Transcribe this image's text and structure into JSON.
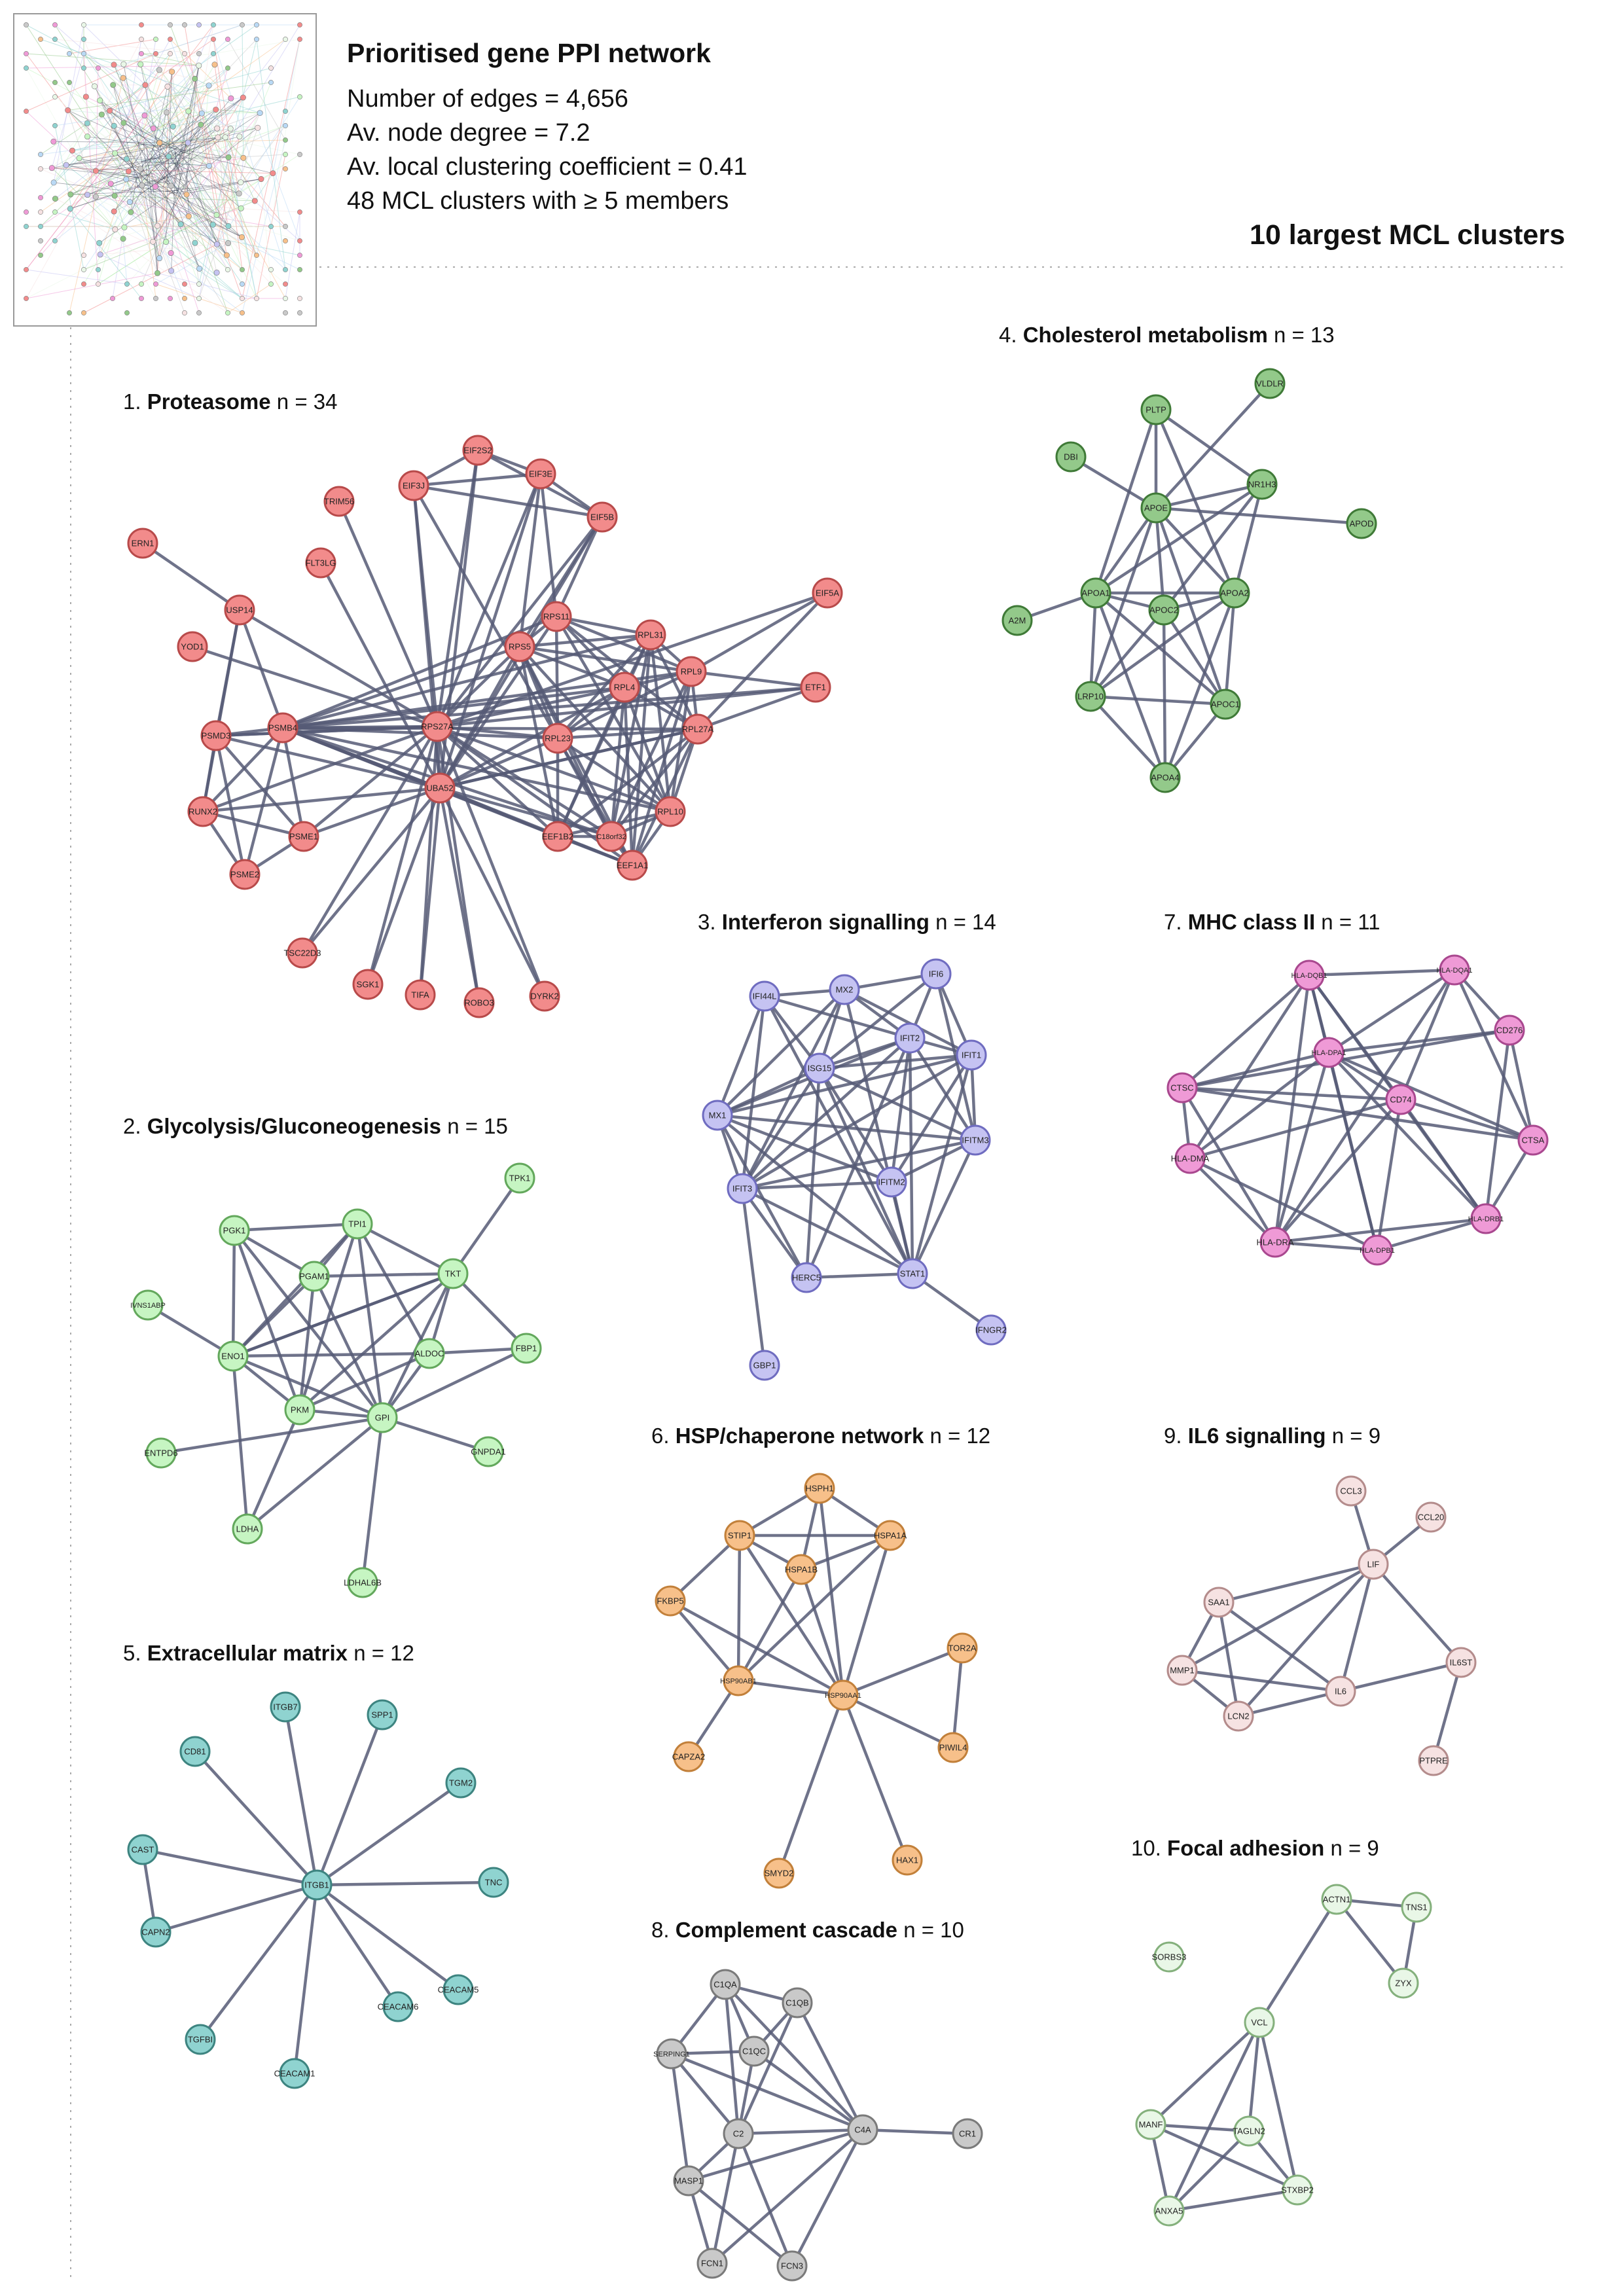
{
  "header": {
    "title": "Prioritised gene PPI network",
    "stats": [
      "Number of edges = 4,656",
      "Av. node degree = 7.2",
      "Av. local clustering coefficient = 0.41",
      "48 MCL clusters with ≥ 5 members"
    ]
  },
  "clusters_heading": "10 largest MCL clusters",
  "clusters": [
    {
      "rank": "1.",
      "name": "Proteasome",
      "count": "n = 34",
      "fill": "#f28b8b",
      "stroke": "#b84a4a",
      "nodes": [
        "EIF2S2",
        "EIF3J",
        "EIF3E",
        "TRIM56",
        "EIF5B",
        "ERN1",
        "FLT3LG",
        "USP14",
        "EIF5A",
        "YOD1",
        "RPS11",
        "RPL31",
        "RPS5",
        "RPL9",
        "RPL4",
        "ETF1",
        "PSMD3",
        "PSMB4",
        "RPS27A",
        "RPL27A",
        "RPL23",
        "UBA52",
        "RUNX2",
        "RPL10",
        "PSME1",
        "EEF1B2",
        "C18orf32",
        "EEF1A1",
        "PSME2",
        "TSC22D3",
        "SGK1",
        "TIFA",
        "ROBO3",
        "DYRK2"
      ]
    },
    {
      "rank": "2.",
      "name": "Glycolysis/Gluconeogenesis",
      "count": "n = 15",
      "fill": "#c6f5c2",
      "stroke": "#63a85c",
      "nodes": [
        "TPK1",
        "PGK1",
        "TPI1",
        "PGAM1",
        "TKT",
        "IVNS1ABP",
        "ENO1",
        "ALDOC",
        "FBP1",
        "PKM",
        "GPI",
        "ENTPD6",
        "GNPDA1",
        "LDHA",
        "LDHAL6B"
      ]
    },
    {
      "rank": "3.",
      "name": "Interferon signalling",
      "count": "n = 14",
      "fill": "#c5c3f2",
      "stroke": "#6f6cc0",
      "nodes": [
        "IFI6",
        "MX2",
        "IFI44L",
        "IFIT2",
        "IFIT1",
        "ISG15",
        "MX1",
        "IFITM3",
        "IFIT3",
        "IFITM2",
        "HERC5",
        "STAT1",
        "IFNGR2",
        "GBP1"
      ]
    },
    {
      "rank": "4.",
      "name": "Cholesterol metabolism",
      "count": "n = 13",
      "fill": "#93c98a",
      "stroke": "#3f7a37",
      "nodes": [
        "VLDLR",
        "PLTP",
        "DBI",
        "NR1H3",
        "APOE",
        "APOD",
        "APOA1",
        "APOA2",
        "APOC2",
        "A2M",
        "LRP10",
        "APOC1",
        "APOA4"
      ]
    },
    {
      "rank": "5.",
      "name": "Extracellular matrix",
      "count": "n = 12",
      "fill": "#8fd3d0",
      "stroke": "#3d8480",
      "nodes": [
        "ITGB7",
        "SPP1",
        "CD81",
        "TGM2",
        "CAST",
        "ITGB1",
        "TNC",
        "CAPN2",
        "CEACAM5",
        "TGFBI",
        "CEACAM6",
        "CEACAM1"
      ]
    },
    {
      "rank": "6.",
      "name": "HSP/chaperone network",
      "count": "n = 12",
      "fill": "#f7c08a",
      "stroke": "#c2803a",
      "nodes": [
        "HSPH1",
        "STIP1",
        "HSPA1A",
        "HSPA1B",
        "FKBP5",
        "TOR2A",
        "HSP90AB1",
        "HSP90AA1",
        "CAPZA2",
        "PIWIL4",
        "SMYD2",
        "HAX1"
      ]
    },
    {
      "rank": "7.",
      "name": "MHC class II",
      "count": "n = 11",
      "fill": "#ef9ad6",
      "stroke": "#a9488f",
      "nodes": [
        "HLA-DQB1",
        "HLA-DQA1",
        "CD276",
        "HLA-DPA1",
        "CTSC",
        "CD74",
        "CTSA",
        "HLA-DMA",
        "HLA-DRB1",
        "HLA-DRA",
        "HLA-DPB1"
      ]
    },
    {
      "rank": "8.",
      "name": "Complement cascade",
      "count": "n = 10",
      "fill": "#c9c9c9",
      "stroke": "#7a7a7a",
      "nodes": [
        "C1QA",
        "C1QB",
        "SERPING1",
        "C1QC",
        "C2",
        "C4A",
        "CR1",
        "MASP1",
        "FCN1",
        "FCN3"
      ]
    },
    {
      "rank": "9.",
      "name": "IL6 signalling",
      "count": "n = 9",
      "fill": "#f6e2e2",
      "stroke": "#b48c8c",
      "nodes": [
        "CCL3",
        "CCL20",
        "LIF",
        "SAA1",
        "IL6ST",
        "MMP1",
        "IL6",
        "LCN2",
        "PTPRE"
      ]
    },
    {
      "rank": "10.",
      "name": "Focal adhesion",
      "count": "n = 9",
      "fill": "#e9f7e7",
      "stroke": "#84b07c",
      "nodes": [
        "ACTN1",
        "TNS1",
        "SORBS3",
        "ZYX",
        "VCL",
        "MANF",
        "TAGLN2",
        "STXBP2",
        "ANXA5"
      ]
    }
  ]
}
